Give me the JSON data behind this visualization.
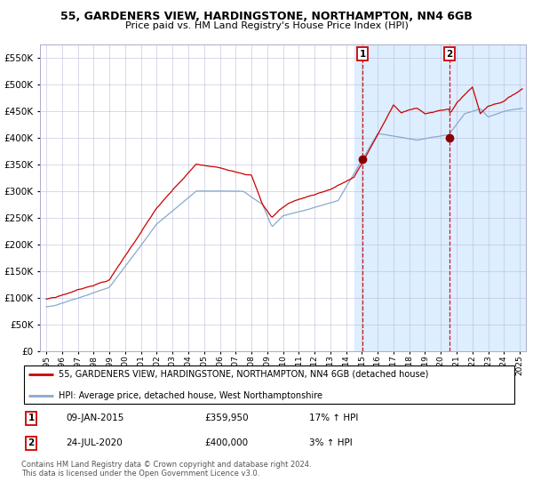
{
  "title": "55, GARDENERS VIEW, HARDINGSTONE, NORTHAMPTON, NN4 6GB",
  "subtitle": "Price paid vs. HM Land Registry's House Price Index (HPI)",
  "legend_line1": "55, GARDENERS VIEW, HARDINGSTONE, NORTHAMPTON, NN4 6GB (detached house)",
  "legend_line2": "HPI: Average price, detached house, West Northamptonshire",
  "sale1_date": "09-JAN-2015",
  "sale1_price": 359950,
  "sale1_hpi": "17% ↑ HPI",
  "sale2_date": "24-JUL-2020",
  "sale2_price": 400000,
  "sale2_hpi": "3% ↑ HPI",
  "footer": "Contains HM Land Registry data © Crown copyright and database right 2024.\nThis data is licensed under the Open Government Licence v3.0.",
  "red_line_color": "#cc0000",
  "blue_line_color": "#88aacc",
  "shade_color": "#ddeeff",
  "grid_color": "#bbbbdd",
  "vline1_color": "#cc0000",
  "vline2_color": "#cc0000",
  "marker_color": "#880000",
  "sale1_year": 2015.03,
  "sale2_year": 2020.56,
  "shade_start": 2014.5,
  "ylim_max": 575000,
  "ylim_min": 0,
  "xmin": 1994.6,
  "xmax": 2025.4
}
